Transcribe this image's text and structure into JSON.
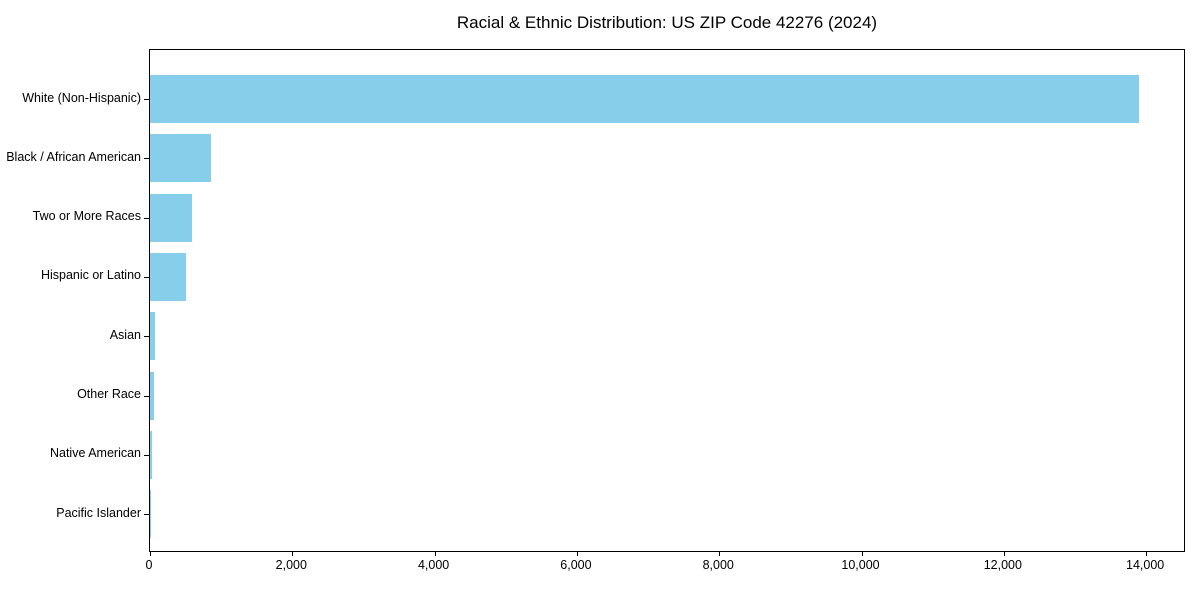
{
  "chart_data": {
    "type": "bar",
    "orientation": "horizontal",
    "title": "Racial & Ethnic Distribution: US ZIP Code 42276 (2024)",
    "categories": [
      "White (Non-Hispanic)",
      "Black / African American",
      "Two or More Races",
      "Hispanic or Latino",
      "Asian",
      "Other Race",
      "Native American",
      "Pacific Islander"
    ],
    "values": [
      13900,
      860,
      590,
      510,
      70,
      50,
      25,
      5
    ],
    "title_text": "Racial & Ethnic Distribution: US ZIP Code 42276 (2024)",
    "xlabel": "",
    "ylabel": "",
    "xlim": [
      0,
      14560
    ],
    "xticks": [
      0,
      2000,
      4000,
      6000,
      8000,
      10000,
      12000,
      14000
    ],
    "xtick_labels": [
      "0",
      "2,000",
      "4,000",
      "6,000",
      "8,000",
      "10,000",
      "12,000",
      "14,000"
    ],
    "bar_color": "#87CEEB",
    "axis_color": "#000000",
    "text_color": "#000000",
    "background_color": "#ffffff",
    "grid": false,
    "legend": null
  }
}
